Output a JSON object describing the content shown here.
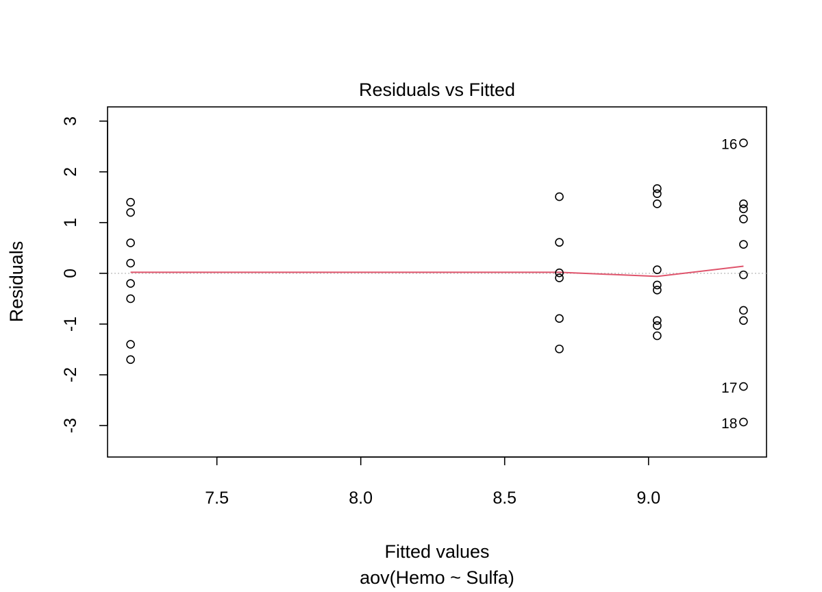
{
  "chart_data": {
    "type": "scatter",
    "title": "Residuals vs Fitted",
    "xlabel": "Fitted values",
    "subtitle": "aov(Hemo ~ Sulfa)",
    "ylabel": "Residuals",
    "xlim": [
      7.12,
      9.41
    ],
    "ylim": [
      -3.62,
      3.28
    ],
    "xticks": [
      "7.5",
      "8.0",
      "8.5",
      "9.0"
    ],
    "yticks": [
      "-3",
      "-2",
      "-1",
      "0",
      "1",
      "2",
      "3"
    ],
    "points": [
      {
        "x": 7.2,
        "y": 1.4
      },
      {
        "x": 7.2,
        "y": 1.2
      },
      {
        "x": 7.2,
        "y": 0.6
      },
      {
        "x": 7.2,
        "y": 0.2
      },
      {
        "x": 7.2,
        "y": -0.2
      },
      {
        "x": 7.2,
        "y": -0.5
      },
      {
        "x": 7.2,
        "y": -1.4
      },
      {
        "x": 7.2,
        "y": -1.7
      },
      {
        "x": 8.69,
        "y": 1.51
      },
      {
        "x": 8.69,
        "y": 0.61
      },
      {
        "x": 8.69,
        "y": 0.01
      },
      {
        "x": 8.69,
        "y": -0.09
      },
      {
        "x": 8.69,
        "y": -0.89
      },
      {
        "x": 8.69,
        "y": -1.49
      },
      {
        "x": 9.03,
        "y": 1.67
      },
      {
        "x": 9.03,
        "y": 1.57
      },
      {
        "x": 9.03,
        "y": 1.37
      },
      {
        "x": 9.03,
        "y": 0.07
      },
      {
        "x": 9.03,
        "y": -0.23
      },
      {
        "x": 9.03,
        "y": -0.33
      },
      {
        "x": 9.03,
        "y": -0.93
      },
      {
        "x": 9.03,
        "y": -1.03
      },
      {
        "x": 9.03,
        "y": -1.23
      },
      {
        "x": 9.33,
        "y": 2.57,
        "label": "16"
      },
      {
        "x": 9.33,
        "y": 1.37
      },
      {
        "x": 9.33,
        "y": 1.27
      },
      {
        "x": 9.33,
        "y": 1.07
      },
      {
        "x": 9.33,
        "y": 0.57
      },
      {
        "x": 9.33,
        "y": -0.03
      },
      {
        "x": 9.33,
        "y": -0.73
      },
      {
        "x": 9.33,
        "y": -0.93
      },
      {
        "x": 9.33,
        "y": -2.23,
        "label": "17"
      },
      {
        "x": 9.33,
        "y": -2.93,
        "label": "18"
      }
    ],
    "smooth": {
      "x": [
        7.2,
        8.69,
        9.03,
        9.33
      ],
      "y": [
        0.02,
        0.02,
        -0.06,
        0.14
      ]
    },
    "reference_line_y": 0,
    "colors": {
      "smooth": "#DF536B",
      "reference": "#BEBEBE",
      "points": "#000000"
    }
  }
}
